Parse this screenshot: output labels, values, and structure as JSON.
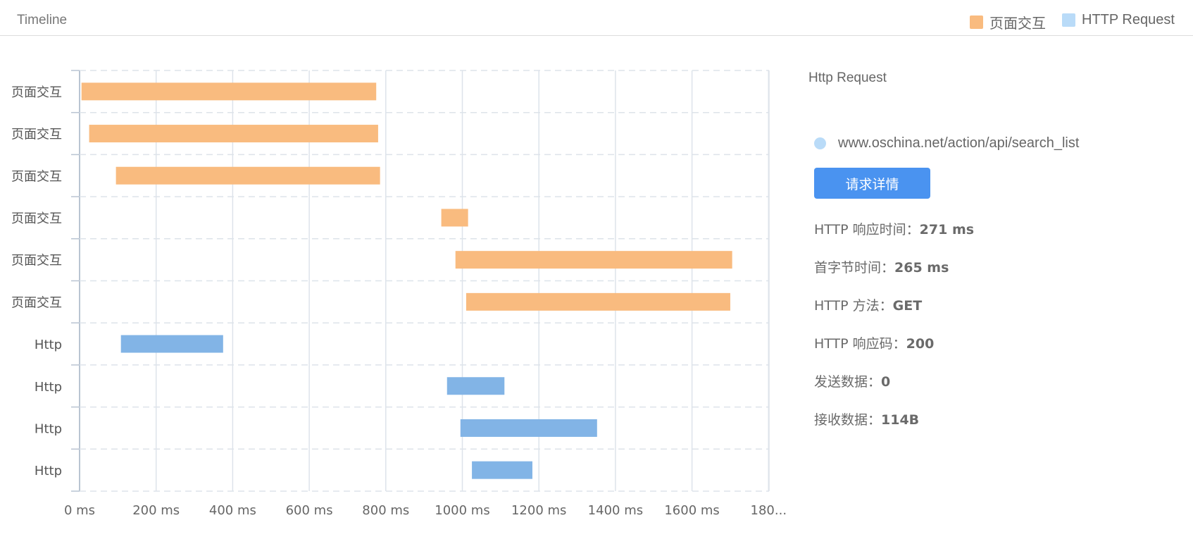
{
  "header": {
    "title": "Timeline",
    "legend": [
      {
        "label": "页面交互",
        "color": "#f9bb7f"
      },
      {
        "label": "HTTP Request",
        "color": "#b9dbf8"
      }
    ]
  },
  "chart_data": {
    "type": "bar",
    "orientation": "horizontal-gantt",
    "x_ticks": [
      "0 ms",
      "200 ms",
      "400 ms",
      "600 ms",
      "800 ms",
      "1000 ms",
      "1200 ms",
      "1400 ms",
      "1600 ms",
      "180..."
    ],
    "xlim": [
      0,
      1800
    ],
    "grid": true,
    "legend_position": "top-right",
    "series": [
      {
        "name": "页面交互",
        "color": "#f9bb7f"
      },
      {
        "name": "HTTP Request",
        "color": "#82b4e6"
      }
    ],
    "rows": [
      {
        "label": "页面交互",
        "series": 0,
        "start": 5,
        "end": 775
      },
      {
        "label": "页面交互",
        "series": 0,
        "start": 25,
        "end": 780
      },
      {
        "label": "页面交互",
        "series": 0,
        "start": 95,
        "end": 785
      },
      {
        "label": "页面交互",
        "series": 0,
        "start": 945,
        "end": 1015
      },
      {
        "label": "页面交互",
        "series": 0,
        "start": 982,
        "end": 1705
      },
      {
        "label": "页面交互",
        "series": 0,
        "start": 1010,
        "end": 1700
      },
      {
        "label": "Http",
        "series": 1,
        "start": 108,
        "end": 375
      },
      {
        "label": "Http",
        "series": 1,
        "start": 960,
        "end": 1110
      },
      {
        "label": "Http",
        "series": 1,
        "start": 995,
        "end": 1352
      },
      {
        "label": "Http",
        "series": 1,
        "start": 1025,
        "end": 1183
      }
    ]
  },
  "panel": {
    "title": "Http Request",
    "request": {
      "url": "www.oschina.net/action/api/search_list",
      "dot_color": "#b9dbf8"
    },
    "detail_button": "请求详情",
    "stats": [
      {
        "label": "HTTP 响应时间：",
        "value": "271 ms"
      },
      {
        "label": "首字节时间：",
        "value": "265 ms"
      },
      {
        "label": "HTTP 方法：",
        "value": "GET"
      },
      {
        "label": "HTTP 响应码：",
        "value": "200"
      },
      {
        "label": "发送数据：",
        "value": "0"
      },
      {
        "label": "接收数据：",
        "value": "114B"
      }
    ]
  }
}
